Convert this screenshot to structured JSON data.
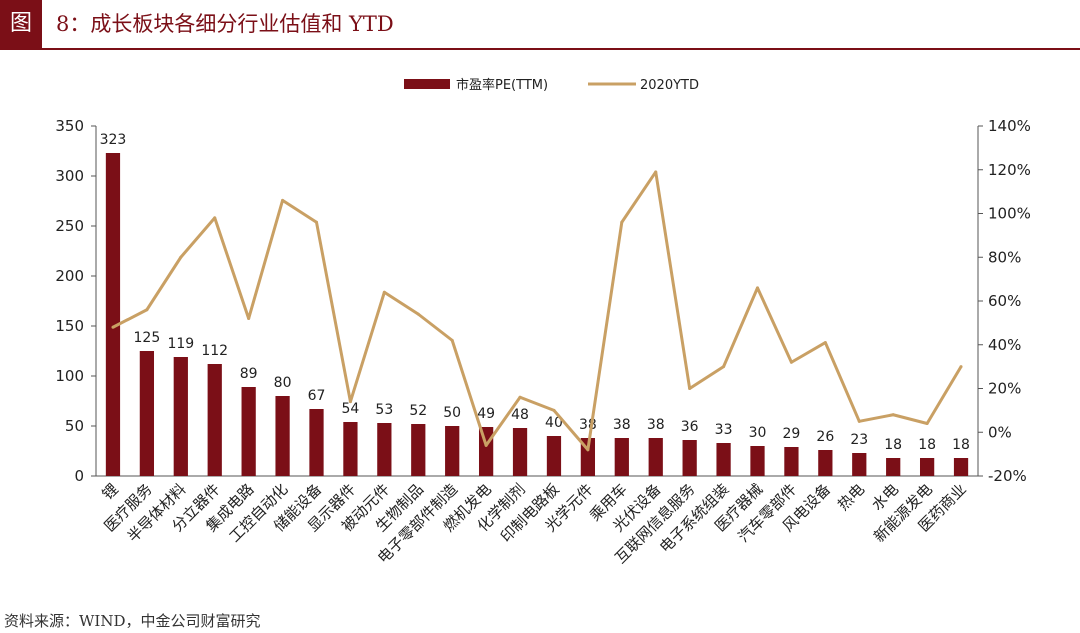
{
  "header": {
    "fig_tag": "图",
    "title": "8：成长板块各细分行业估值和 YTD"
  },
  "source": "资料来源：WIND，中金公司财富研究",
  "chart_data": {
    "type": "bar+line",
    "categories": [
      "锂",
      "医疗服务",
      "半导体材料",
      "分立器件",
      "集成电路",
      "工控自动化",
      "储能设备",
      "显示器件",
      "被动元件",
      "生物制品",
      "电子零部件制造",
      "燃机发电",
      "化学制剂",
      "印制电路板",
      "光学元件",
      "乘用车",
      "光伏设备",
      "互联网信息服务",
      "电子系统组装",
      "医疗器械",
      "汽车零部件",
      "风电设备",
      "热电",
      "水电",
      "新能源发电",
      "医药商业"
    ],
    "series": [
      {
        "name": "市盈率PE(TTM)",
        "type": "bar",
        "axis": "left",
        "color": "#7b0f17",
        "values": [
          323,
          125,
          119,
          112,
          89,
          80,
          67,
          54,
          53,
          52,
          50,
          49,
          48,
          40,
          38,
          38,
          38,
          36,
          33,
          30,
          29,
          26,
          23,
          18,
          18,
          18
        ]
      },
      {
        "name": "2020YTD",
        "type": "line",
        "axis": "right",
        "color": "#c9a064",
        "values": [
          48,
          56,
          80,
          98,
          52,
          106,
          96,
          14,
          64,
          54,
          42,
          -6,
          16,
          10,
          -8,
          96,
          119,
          20,
          30,
          66,
          32,
          41,
          5,
          8,
          4,
          30
        ]
      }
    ],
    "left_axis": {
      "ylim": [
        0,
        350
      ],
      "ticks": [
        "0",
        "50",
        "100",
        "150",
        "200",
        "250",
        "300",
        "350"
      ]
    },
    "right_axis": {
      "ylim": [
        -20,
        140
      ],
      "unit": "%",
      "ticks": [
        "-20%",
        "0%",
        "20%",
        "40%",
        "60%",
        "80%",
        "100%",
        "120%",
        "140%"
      ]
    },
    "legend_position": "top-center",
    "grid": false
  }
}
